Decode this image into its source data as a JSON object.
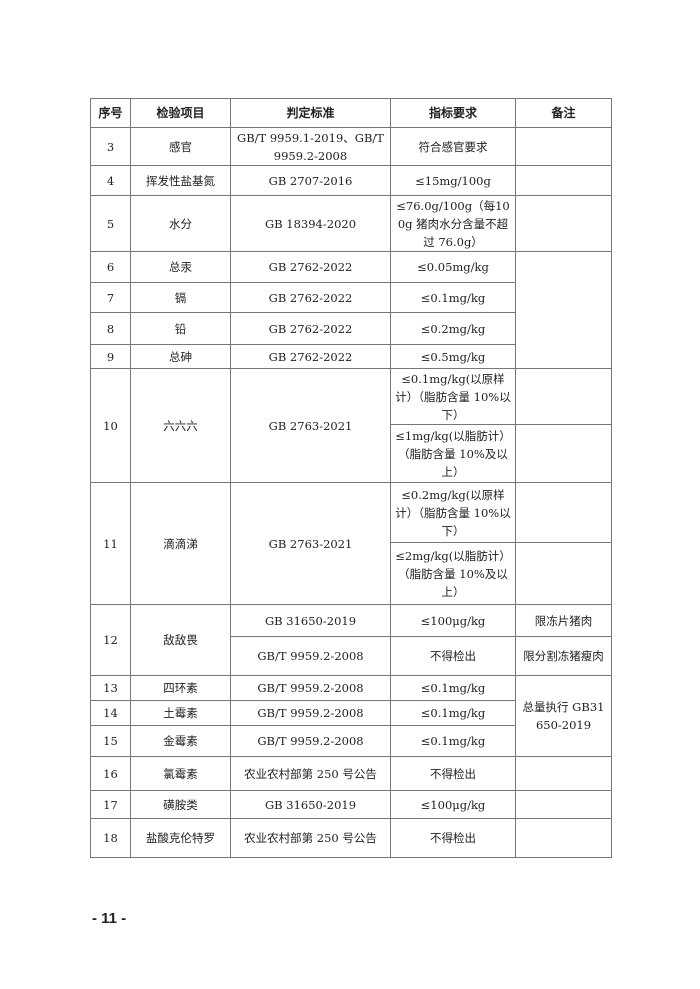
{
  "headers": [
    "序号",
    "检验项目",
    "判定标准",
    "指标要求",
    "备注"
  ],
  "rows": {
    "r3": {
      "no": "3",
      "item": "感官",
      "standard": "GB/T 9959.1-2019、GB/T 9959.2-2008",
      "requirement": "符合感官要求",
      "remark": ""
    },
    "r4": {
      "no": "4",
      "item": "挥发性盐基氮",
      "standard": "GB 2707-2016",
      "requirement": "≤15mg/100g",
      "remark": ""
    },
    "r5": {
      "no": "5",
      "item": "水分",
      "standard": "GB 18394-2020",
      "requirement": "≤76.0g/100g（每100g 猪肉水分含量不超过 76.0g）",
      "remark": ""
    },
    "r6": {
      "no": "6",
      "item": "总汞",
      "standard": "GB 2762-2022",
      "requirement": "≤0.05mg/kg"
    },
    "r7": {
      "no": "7",
      "item": "镉",
      "standard": "GB 2762-2022",
      "requirement": "≤0.1mg/kg"
    },
    "r8": {
      "no": "8",
      "item": "铅",
      "standard": "GB 2762-2022",
      "requirement": "≤0.2mg/kg"
    },
    "r9": {
      "no": "9",
      "item": "总砷",
      "standard": "GB 2762-2022",
      "requirement": "≤0.5mg/kg"
    },
    "r6_9_remark": "",
    "r10": {
      "no": "10",
      "item": "六六六",
      "standard": "GB 2763-2021",
      "requirement_a": "≤0.1mg/kg(以原样计）（脂肪含量 10%以下）",
      "remark_a": "",
      "requirement_b": "≤1mg/kg(以脂肪计）（脂肪含量 10%及以上）",
      "remark_b": ""
    },
    "r11": {
      "no": "11",
      "item": "滴滴涕",
      "standard": "GB 2763-2021",
      "requirement_a": "≤0.2mg/kg(以原样计）（脂肪含量 10%以下）",
      "remark_a": "",
      "requirement_b": "≤2mg/kg(以脂肪计）（脂肪含量 10%及以上）",
      "remark_b": ""
    },
    "r12": {
      "no": "12",
      "item": "敌敌畏",
      "standard_a": "GB 31650-2019",
      "requirement_a": "≤100μg/kg",
      "remark_a": "限冻片猪肉",
      "standard_b": "GB/T 9959.2-2008",
      "requirement_b": "不得检出",
      "remark_b": "限分割冻猪瘦肉"
    },
    "r13": {
      "no": "13",
      "item": "四环素",
      "standard": "GB/T 9959.2-2008",
      "requirement": "≤0.1mg/kg"
    },
    "r14": {
      "no": "14",
      "item": "土霉素",
      "standard": "GB/T 9959.2-2008",
      "requirement": "≤0.1mg/kg"
    },
    "r15": {
      "no": "15",
      "item": "金霉素",
      "standard": "GB/T 9959.2-2008",
      "requirement": "≤0.1mg/kg"
    },
    "r13_15_remark": "总量执行 GB31650-2019",
    "r16": {
      "no": "16",
      "item": "氯霉素",
      "standard": "农业农村部第 250 号公告",
      "requirement": "不得检出",
      "remark": ""
    },
    "r17": {
      "no": "17",
      "item": "磺胺类",
      "standard": "GB 31650-2019",
      "requirement": "≤100μg/kg",
      "remark": ""
    },
    "r18": {
      "no": "18",
      "item": "盐酸克伦特罗",
      "standard": "农业农村部第 250 号公告",
      "requirement": "不得检出",
      "remark": ""
    }
  },
  "footer": {
    "page_number": "- 11 -"
  }
}
